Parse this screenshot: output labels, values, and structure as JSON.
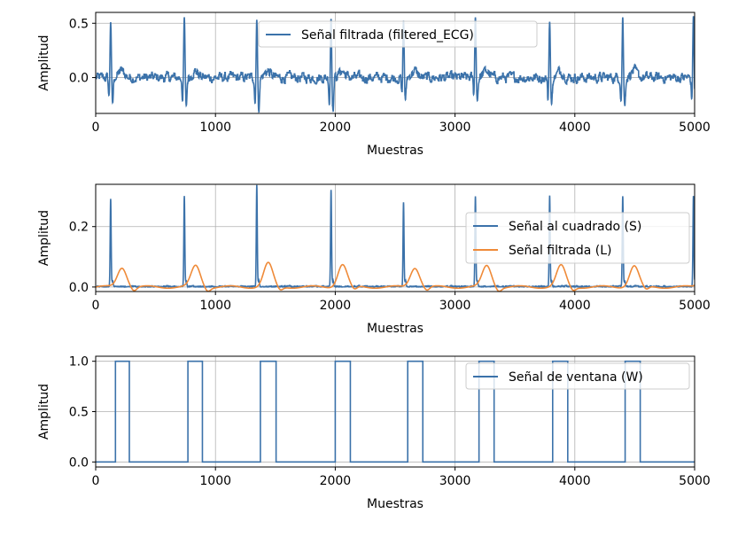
{
  "chart_data": [
    {
      "type": "line",
      "xlabel": "Muestras",
      "ylabel": "Amplitud",
      "xlim": [
        0,
        5000
      ],
      "ylim": [
        -0.33,
        0.6
      ],
      "xticks": [
        0,
        1000,
        2000,
        3000,
        4000,
        5000
      ],
      "yticks": [
        0.0,
        0.5
      ],
      "ytick_labels": [
        "0.0",
        "0.5"
      ],
      "grid": true,
      "legend_position": "top-right",
      "series": [
        {
          "name": "Señal filtrada (filtered_ECG)",
          "color": "#3b72aa",
          "signal": "ecg",
          "peaks": [
            125,
            740,
            1345,
            1965,
            2570,
            3170,
            3790,
            4400,
            4990
          ],
          "peak_values": [
            0.54,
            0.55,
            0.58,
            0.57,
            0.53,
            0.56,
            0.56,
            0.56,
            0.56
          ],
          "trough_values": [
            -0.25,
            -0.27,
            -0.3,
            -0.3,
            -0.22,
            -0.2,
            -0.27,
            -0.26,
            -0.27
          ],
          "baseline_noise": 0.05
        }
      ]
    },
    {
      "type": "line",
      "xlabel": "Muestras",
      "ylabel": "Amplitud",
      "xlim": [
        0,
        5000
      ],
      "ylim": [
        -0.015,
        0.34
      ],
      "xticks": [
        0,
        1000,
        2000,
        3000,
        4000,
        5000
      ],
      "yticks": [
        0.0,
        0.2
      ],
      "ytick_labels": [
        "0.0",
        "0.2"
      ],
      "grid": true,
      "legend_position": "right",
      "series": [
        {
          "name": "Señal al cuadrado (S)",
          "color": "#3b72aa",
          "signal": "squared",
          "peaks": [
            125,
            740,
            1345,
            1965,
            2570,
            3170,
            3790,
            4400,
            4990
          ],
          "peak_values": [
            0.29,
            0.3,
            0.335,
            0.32,
            0.28,
            0.3,
            0.3,
            0.3,
            0.3
          ]
        },
        {
          "name": "Señal filtrada (L)",
          "color": "#ef8a38",
          "signal": "smoothed",
          "peaks": [
            125,
            740,
            1345,
            1965,
            2570,
            3170,
            3790,
            4400,
            4990
          ],
          "peak_values": [
            0.065,
            0.07,
            0.078,
            0.075,
            0.065,
            0.07,
            0.07,
            0.07,
            0.065
          ]
        }
      ]
    },
    {
      "type": "line",
      "xlabel": "Muestras",
      "ylabel": "Amplitud",
      "xlim": [
        0,
        5000
      ],
      "ylim": [
        -0.05,
        1.05
      ],
      "xticks": [
        0,
        1000,
        2000,
        3000,
        4000,
        5000
      ],
      "yticks": [
        0.0,
        0.5,
        1.0
      ],
      "ytick_labels": [
        "0.0",
        "0.5",
        "1.0"
      ],
      "grid": true,
      "legend_position": "top-right",
      "series": [
        {
          "name": "Señal de ventana (W)",
          "color": "#3b72aa",
          "signal": "window",
          "windows": [
            [
              165,
              280
            ],
            [
              770,
              890
            ],
            [
              1375,
              1505
            ],
            [
              2000,
              2125
            ],
            [
              2605,
              2730
            ],
            [
              3200,
              3325
            ],
            [
              3815,
              3940
            ],
            [
              4420,
              4545
            ]
          ]
        }
      ]
    }
  ]
}
